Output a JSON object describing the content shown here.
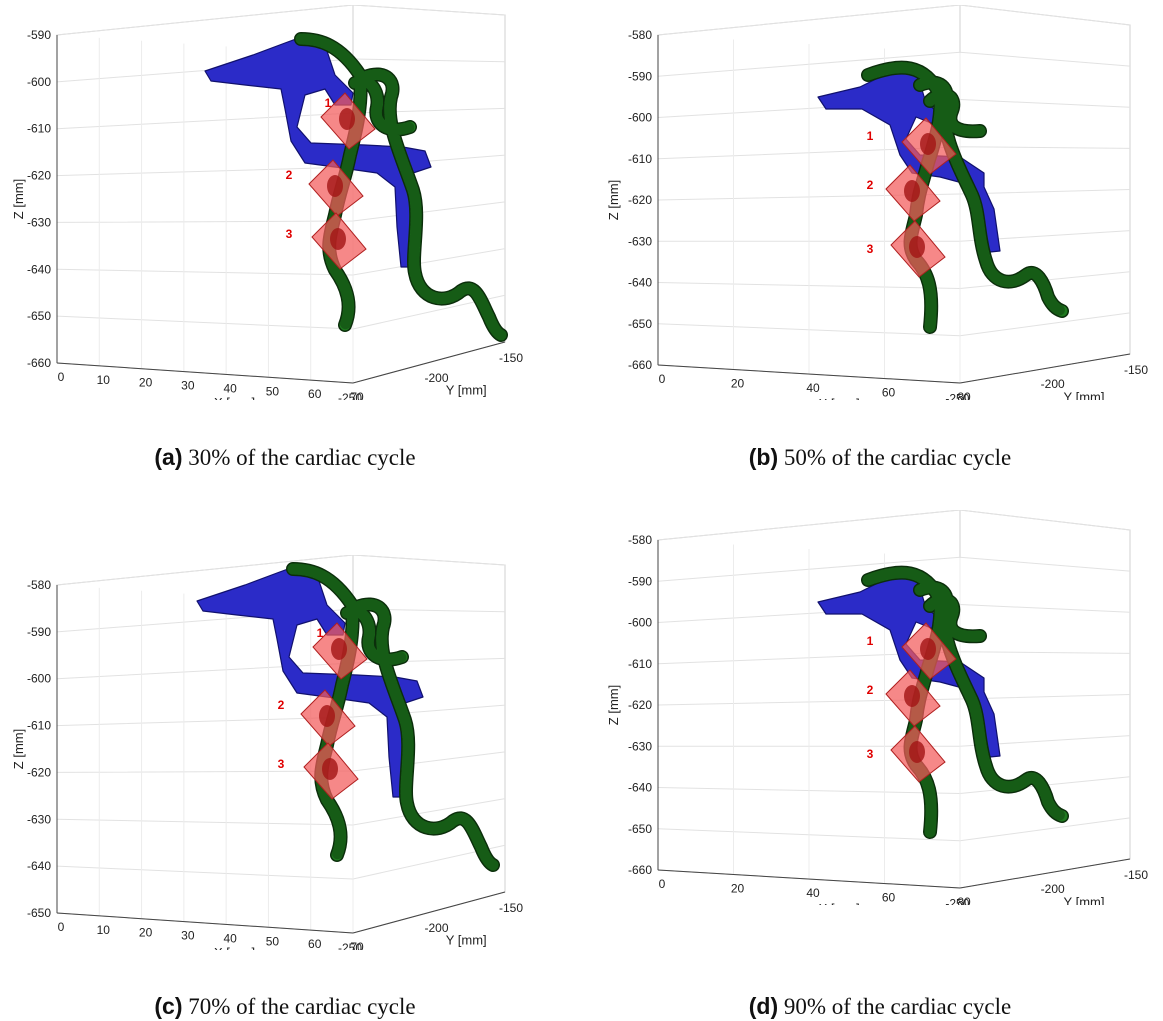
{
  "chart_data": [
    {
      "type": "3d-scatter",
      "letter": "(a)",
      "caption": "30% of the cardiac cycle",
      "xlabel": "X [mm]",
      "ylabel": "Y [mm]",
      "zlabel": "Z [mm]",
      "x_ticks": [
        "0",
        "10",
        "20",
        "30",
        "40",
        "50",
        "60",
        "70"
      ],
      "y_ticks": [
        "-250",
        "-200",
        "-150"
      ],
      "z_ticks": [
        "-590",
        "-600",
        "-610",
        "-620",
        "-630",
        "-640",
        "-650",
        "-660"
      ],
      "planes": [
        "1",
        "2",
        "3"
      ],
      "colors": {
        "shell": "#2b2bc8",
        "vessel": "#1f7a1f",
        "plane": "#f25a5a"
      }
    },
    {
      "type": "3d-scatter",
      "letter": "(b)",
      "caption": "50% of the cardiac cycle",
      "xlabel": "X [mm]",
      "ylabel": "Y [mm]",
      "zlabel": "Z [mm]",
      "x_ticks": [
        "0",
        "20",
        "40",
        "60",
        "80"
      ],
      "y_ticks": [
        "-250",
        "-200",
        "-150"
      ],
      "z_ticks": [
        "-580",
        "-590",
        "-600",
        "-610",
        "-620",
        "-630",
        "-640",
        "-650",
        "-660"
      ],
      "planes": [
        "1",
        "2",
        "3"
      ],
      "colors": {
        "shell": "#2b2bc8",
        "vessel": "#1f7a1f",
        "plane": "#f25a5a"
      }
    },
    {
      "type": "3d-scatter",
      "letter": "(c)",
      "caption": "70% of the cardiac cycle",
      "xlabel": "X [mm]",
      "ylabel": "Y [mm]",
      "zlabel": "Z [mm]",
      "x_ticks": [
        "0",
        "10",
        "20",
        "30",
        "40",
        "50",
        "60",
        "70"
      ],
      "y_ticks": [
        "-250",
        "-200",
        "-150"
      ],
      "z_ticks": [
        "-580",
        "-590",
        "-600",
        "-610",
        "-620",
        "-630",
        "-640",
        "-650"
      ],
      "planes": [
        "1",
        "2",
        "3"
      ],
      "colors": {
        "shell": "#2b2bc8",
        "vessel": "#1f7a1f",
        "plane": "#f25a5a"
      }
    },
    {
      "type": "3d-scatter",
      "letter": "(d)",
      "caption": "90% of the cardiac cycle",
      "xlabel": "X [mm]",
      "ylabel": "Y [mm]",
      "zlabel": "Z [mm]",
      "x_ticks": [
        "0",
        "20",
        "40",
        "60",
        "80"
      ],
      "y_ticks": [
        "-250",
        "-200",
        "-150"
      ],
      "z_ticks": [
        "-580",
        "-590",
        "-600",
        "-610",
        "-620",
        "-630",
        "-640",
        "-650",
        "-660"
      ],
      "planes": [
        "1",
        "2",
        "3"
      ],
      "colors": {
        "shell": "#2b2bc8",
        "vessel": "#1f7a1f",
        "plane": "#f25a5a"
      }
    }
  ]
}
